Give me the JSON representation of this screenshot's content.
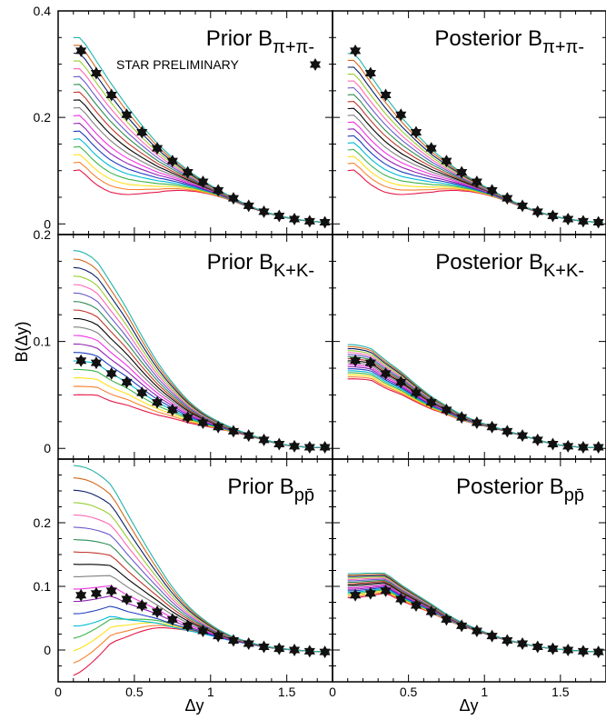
{
  "figure": {
    "ylabel": "B(Δy)",
    "xlabel_left": "Δy",
    "xlabel_right": "Δy",
    "x_ticks": [
      "0",
      "0.5",
      "1",
      "1.5"
    ],
    "legend": {
      "text": "STAR PRELIMINARY"
    }
  },
  "colors": {
    "data_marker": "#111111",
    "curves": [
      "#e6194b",
      "#f58231",
      "#ffe119",
      "#3cb44b",
      "#00bcd4",
      "#1f3fbf",
      "#911eb4",
      "#f032e6",
      "#808080",
      "#000000",
      "#c0392b",
      "#2e8b57",
      "#6a5acd",
      "#ff69b4",
      "#9acd32",
      "#0b1f66",
      "#d2691e",
      "#20b2aa"
    ]
  },
  "chart_data": [
    {
      "type": "line",
      "title": "Prior B",
      "subscript": "π+π-",
      "xlim": [
        0,
        1.8
      ],
      "ylim": [
        -0.02,
        0.4
      ],
      "y_ticks": [
        "0.4",
        "0.2",
        "0"
      ],
      "data": {
        "x": [
          0.15,
          0.25,
          0.35,
          0.45,
          0.55,
          0.65,
          0.75,
          0.85,
          0.95,
          1.05,
          1.15,
          1.25,
          1.35,
          1.45,
          1.55,
          1.65,
          1.75
        ],
        "y": [
          0.325,
          0.283,
          0.242,
          0.205,
          0.172,
          0.142,
          0.118,
          0.097,
          0.079,
          0.063,
          0.048,
          0.034,
          0.023,
          0.015,
          0.009,
          0.005,
          0.003
        ]
      },
      "curve_range": [
        0.1,
        0.29,
        0.35
      ]
    },
    {
      "type": "line",
      "title": "Posterior B",
      "subscript": "π+π-",
      "xlim": [
        0,
        1.8
      ],
      "ylim": [
        -0.02,
        0.4
      ],
      "y_ticks": [
        "",
        "",
        ""
      ],
      "data": {
        "x": [
          0.15,
          0.25,
          0.35,
          0.45,
          0.55,
          0.65,
          0.75,
          0.85,
          0.95,
          1.05,
          1.15,
          1.25,
          1.35,
          1.45,
          1.55,
          1.65,
          1.75
        ],
        "y": [
          0.325,
          0.283,
          0.242,
          0.205,
          0.172,
          0.142,
          0.118,
          0.097,
          0.079,
          0.063,
          0.048,
          0.034,
          0.023,
          0.015,
          0.009,
          0.005,
          0.003
        ]
      },
      "curve_range": [
        0.1,
        0.3,
        0.32
      ]
    },
    {
      "type": "line",
      "title": "Prior B",
      "subscript": "K+K-",
      "xlim": [
        0,
        1.8
      ],
      "ylim": [
        -0.01,
        0.2
      ],
      "y_ticks": [
        "0.2",
        "0.1",
        "0"
      ],
      "data": {
        "x": [
          0.15,
          0.25,
          0.35,
          0.45,
          0.55,
          0.65,
          0.75,
          0.85,
          0.95,
          1.05,
          1.15,
          1.25,
          1.35,
          1.45,
          1.55,
          1.65,
          1.75
        ],
        "y": [
          0.082,
          0.08,
          0.07,
          0.062,
          0.052,
          0.043,
          0.036,
          0.029,
          0.024,
          0.02,
          0.016,
          0.012,
          0.008,
          0.004,
          0.002,
          0.001,
          0.001
        ]
      },
      "curve_range": [
        0.05,
        0.11,
        0.185
      ]
    },
    {
      "type": "line",
      "title": "Posterior B",
      "subscript": "K+K-",
      "xlim": [
        0,
        1.8
      ],
      "ylim": [
        -0.01,
        0.2
      ],
      "y_ticks": [
        "",
        "",
        ""
      ],
      "data": {
        "x": [
          0.15,
          0.25,
          0.35,
          0.45,
          0.55,
          0.65,
          0.75,
          0.85,
          0.95,
          1.05,
          1.15,
          1.25,
          1.35,
          1.45,
          1.55,
          1.65,
          1.75
        ],
        "y": [
          0.082,
          0.08,
          0.07,
          0.062,
          0.052,
          0.043,
          0.036,
          0.029,
          0.024,
          0.02,
          0.016,
          0.012,
          0.008,
          0.004,
          0.002,
          0.001,
          0.001
        ]
      },
      "curve_range": [
        0.065,
        0.082,
        0.097
      ]
    },
    {
      "type": "line",
      "title": "Prior B",
      "subscript": "pp̄",
      "xlim": [
        0,
        1.8
      ],
      "ylim": [
        -0.05,
        0.3
      ],
      "y_ticks": [
        "0.2",
        "0.1",
        "0"
      ],
      "data": {
        "x": [
          0.15,
          0.25,
          0.35,
          0.45,
          0.55,
          0.65,
          0.75,
          0.85,
          0.95,
          1.05,
          1.15,
          1.25,
          1.35,
          1.45,
          1.55,
          1.65,
          1.75
        ],
        "y": [
          0.086,
          0.089,
          0.093,
          0.08,
          0.07,
          0.06,
          0.048,
          0.038,
          0.03,
          0.022,
          0.015,
          0.01,
          0.005,
          0.002,
          0.0,
          -0.002,
          -0.003
        ]
      },
      "curve_range": [
        -0.04,
        0.1,
        0.29
      ]
    },
    {
      "type": "line",
      "title": "Posterior B",
      "subscript": "pp̄",
      "xlim": [
        0,
        1.8
      ],
      "ylim": [
        -0.05,
        0.3
      ],
      "y_ticks": [
        "",
        "",
        ""
      ],
      "data": {
        "x": [
          0.15,
          0.25,
          0.35,
          0.45,
          0.55,
          0.65,
          0.75,
          0.85,
          0.95,
          1.05,
          1.15,
          1.25,
          1.35,
          1.45,
          1.55,
          1.65,
          1.75
        ],
        "y": [
          0.086,
          0.089,
          0.093,
          0.08,
          0.07,
          0.06,
          0.048,
          0.038,
          0.03,
          0.022,
          0.015,
          0.01,
          0.005,
          0.002,
          0.0,
          -0.002,
          -0.003
        ]
      },
      "curve_range": [
        0.082,
        0.1,
        0.12
      ]
    }
  ]
}
